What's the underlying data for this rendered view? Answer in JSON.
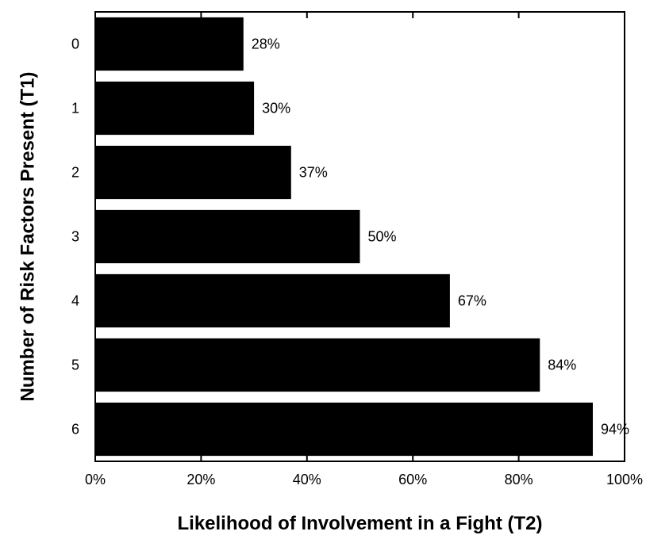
{
  "chart_data": {
    "type": "bar",
    "orientation": "horizontal",
    "categories": [
      "0",
      "1",
      "2",
      "3",
      "4",
      "5",
      "6"
    ],
    "values": [
      28,
      30,
      37,
      50,
      67,
      84,
      94
    ],
    "data_labels": [
      "28%",
      "30%",
      "37%",
      "50%",
      "67%",
      "84%",
      "94%"
    ],
    "xlabel": "Likelihood of Involvement in a Fight (T2)",
    "ylabel": "Number of Risk Factors Present (T1)",
    "xlim": [
      0,
      100
    ],
    "x_ticks": [
      0,
      20,
      40,
      60,
      80,
      100
    ],
    "x_tick_labels": [
      "0%",
      "20%",
      "40%",
      "60%",
      "80%",
      "100%"
    ],
    "grid": false,
    "bar_color": "#000000"
  }
}
